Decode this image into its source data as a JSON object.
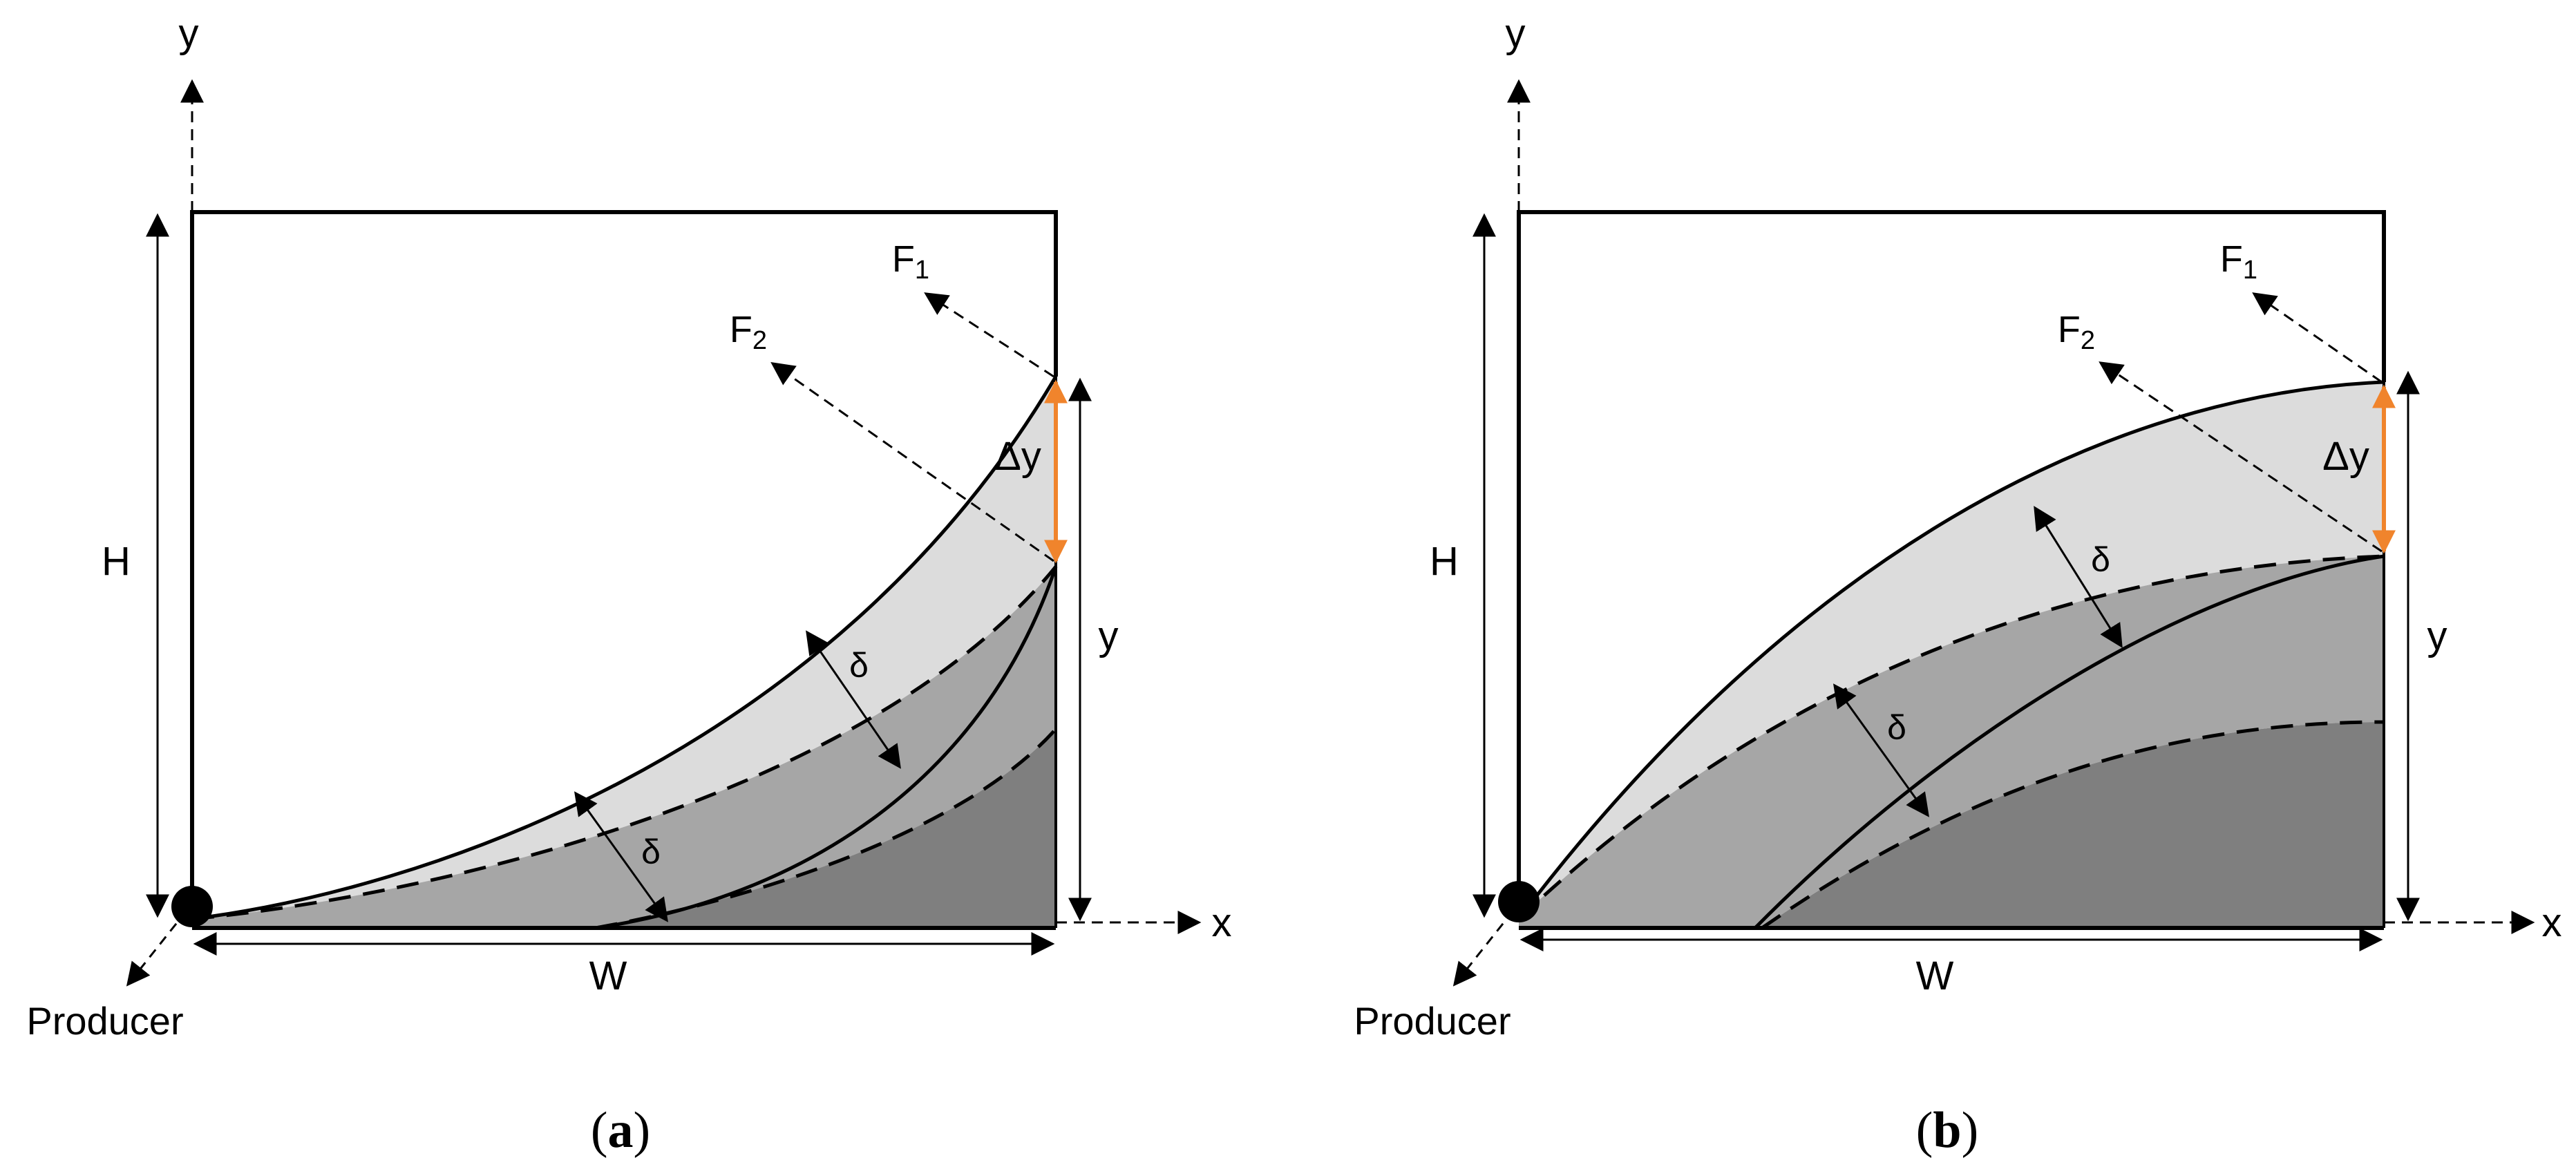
{
  "panels": [
    {
      "id": "a",
      "caption": "a",
      "labels": {
        "y_axis": "y",
        "x_axis": "x",
        "height": "H",
        "width": "W",
        "y_right": "y",
        "delta_y": "Δy",
        "delta_top": "δ",
        "delta_bottom": "δ",
        "force1": "F",
        "force1_sub": "1",
        "force2": "F",
        "force2_sub": "2",
        "producer": "Producer"
      }
    },
    {
      "id": "b",
      "caption": "b",
      "labels": {
        "y_axis": "y",
        "x_axis": "x",
        "height": "H",
        "width": "W",
        "y_right": "y",
        "delta_y": "Δy",
        "delta_top": "δ",
        "delta_bottom": "δ",
        "force1": "F",
        "force1_sub": "1",
        "force2": "F",
        "force2_sub": "2",
        "producer": "Producer"
      }
    }
  ],
  "colors": {
    "light_region": "#dcdcdc",
    "mid_region": "#a6a6a6",
    "dark_region": "#7f7f7f",
    "delta_y_arrow": "#f0842c",
    "line": "#000000"
  }
}
